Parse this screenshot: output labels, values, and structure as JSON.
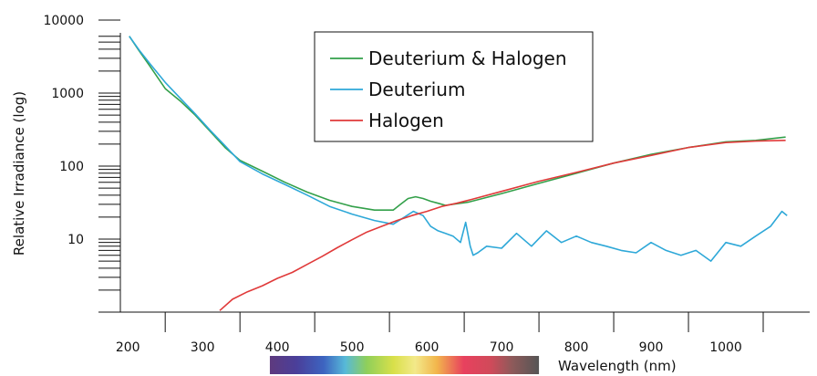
{
  "chart_data": {
    "type": "line",
    "title": "",
    "xlabel": "Wavelength (nm)",
    "ylabel": "Relative Irradiance (log)",
    "xlim": [
      190,
      1100
    ],
    "ylim": [
      1,
      10000
    ],
    "yscale": "log",
    "x_ticks": [
      200,
      300,
      400,
      500,
      600,
      700,
      800,
      900,
      1000
    ],
    "x_minor_ticks": [
      250,
      350,
      450,
      550,
      650,
      750,
      850,
      950,
      1050
    ],
    "y_ticks": [
      {
        "value": 10,
        "label": "10"
      },
      {
        "value": 100,
        "label": "100"
      },
      {
        "value": 1000,
        "label": "1000"
      },
      {
        "value": 10000,
        "label": "10000"
      }
    ],
    "grid": false,
    "legend": "top-center",
    "spectrum_bar": {
      "x_start": 390,
      "x_end": 750
    },
    "series": [
      {
        "name": "Deuterium & Halogen",
        "color": "#33a04a",
        "x": [
          202,
          215,
          230,
          250,
          270,
          290,
          310,
          330,
          350,
          380,
          410,
          440,
          470,
          500,
          530,
          555,
          565,
          575,
          585,
          595,
          605,
          615,
          625,
          635,
          645,
          655,
          700,
          750,
          800,
          850,
          900,
          950,
          1000,
          1040,
          1080
        ],
        "y": [
          6000,
          3800,
          2300,
          1150,
          780,
          500,
          300,
          180,
          120,
          85,
          60,
          44,
          34,
          28,
          25,
          25,
          30,
          36,
          38,
          36,
          33,
          31,
          29,
          30,
          31,
          32,
          42,
          58,
          80,
          110,
          145,
          180,
          215,
          225,
          250
        ]
      },
      {
        "name": "Deuterium",
        "color": "#2ea8d8",
        "x": [
          202,
          215,
          230,
          250,
          270,
          290,
          310,
          330,
          350,
          380,
          410,
          440,
          470,
          500,
          530,
          555,
          570,
          582,
          595,
          605,
          615,
          625,
          635,
          645,
          652,
          658,
          662,
          668,
          680,
          700,
          720,
          740,
          760,
          780,
          800,
          820,
          840,
          860,
          880,
          900,
          920,
          940,
          960,
          980,
          1000,
          1020,
          1040,
          1060,
          1075,
          1082
        ],
        "y": [
          6000,
          3900,
          2500,
          1400,
          850,
          520,
          310,
          190,
          115,
          78,
          56,
          40,
          28,
          22,
          18,
          16,
          20,
          24,
          21,
          15,
          13,
          12,
          11,
          9,
          17,
          8,
          6,
          6.5,
          8,
          7.5,
          12,
          8,
          13,
          9,
          11,
          9,
          8,
          7,
          6.5,
          9,
          7,
          6,
          7,
          5,
          9,
          8,
          11,
          15,
          24,
          21
        ]
      },
      {
        "name": "Halogen",
        "color": "#e03a3a",
        "x": [
          323,
          340,
          360,
          380,
          400,
          420,
          440,
          460,
          480,
          500,
          520,
          540,
          560,
          580,
          600,
          620,
          640,
          660,
          700,
          750,
          800,
          850,
          900,
          950,
          1000,
          1040,
          1080
        ],
        "y": [
          1.05,
          1.5,
          1.9,
          2.3,
          2.9,
          3.5,
          4.5,
          5.8,
          7.6,
          9.8,
          12.5,
          15,
          18,
          21,
          24,
          28,
          31,
          35,
          45,
          62,
          82,
          110,
          140,
          180,
          210,
          220,
          225
        ]
      }
    ]
  }
}
